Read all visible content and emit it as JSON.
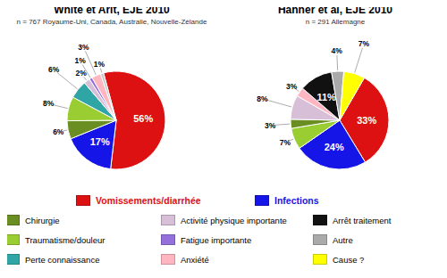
{
  "chart_data": [
    {
      "type": "pie",
      "title": "White et Arlt, EJE 2010",
      "subtitle": "n = 767 Royaume-Uni, Canada, Australie, Nouvelle-Zélande",
      "values": [
        56,
        17,
        6,
        8,
        6,
        2,
        1,
        3,
        1
      ],
      "value_labels": [
        "56%",
        "17%",
        "6%",
        "8%",
        "6%",
        "2%",
        "1%",
        "3%",
        "1%"
      ],
      "colors": [
        "#dd1111",
        "#1515e8",
        "#6b8e23",
        "#9acd32",
        "#2fa5a5",
        "#d8bfd8",
        "#9370db",
        "#ffb6c1",
        "#c8c8c8"
      ],
      "data_labels": true
    },
    {
      "type": "pie",
      "title": "Hahner et al, EJE 2010",
      "subtitle": "n = 291 Allemagne",
      "values": [
        33,
        24,
        7,
        3,
        8,
        3,
        11,
        4,
        7
      ],
      "value_labels": [
        "33%",
        "24%",
        "7%",
        "3%",
        "8%",
        "3%",
        "11%",
        "4%",
        "7%"
      ],
      "colors": [
        "#dd1111",
        "#1515e8",
        "#9acd32",
        "#6b8e23",
        "#d8bfd8",
        "#ffb6c1",
        "#111111",
        "#aaaaaa",
        "#ffff00"
      ],
      "data_labels": true
    }
  ],
  "legend": "bottom",
  "series": [
    {
      "name": "Vomissements/diarrhée",
      "color": "#dd1111"
    },
    {
      "name": "Infections",
      "color": "#1515e8"
    },
    {
      "name": "Chirurgie",
      "color": "#6b8e23"
    },
    {
      "name": "Activité physique importante",
      "color": "#d8bfd8"
    },
    {
      "name": "Arrêt traitement",
      "color": "#111111"
    },
    {
      "name": "Traumatisme/douleur",
      "color": "#9acd32"
    },
    {
      "name": "Fatigue importante",
      "color": "#9370db"
    },
    {
      "name": "Autre",
      "color": "#aaaaaa"
    },
    {
      "name": "Perte connaissance",
      "color": "#2fa5a5"
    },
    {
      "name": "Anxiété",
      "color": "#ffb6c1"
    },
    {
      "name": "Cause ?",
      "color": "#ffff00"
    }
  ]
}
